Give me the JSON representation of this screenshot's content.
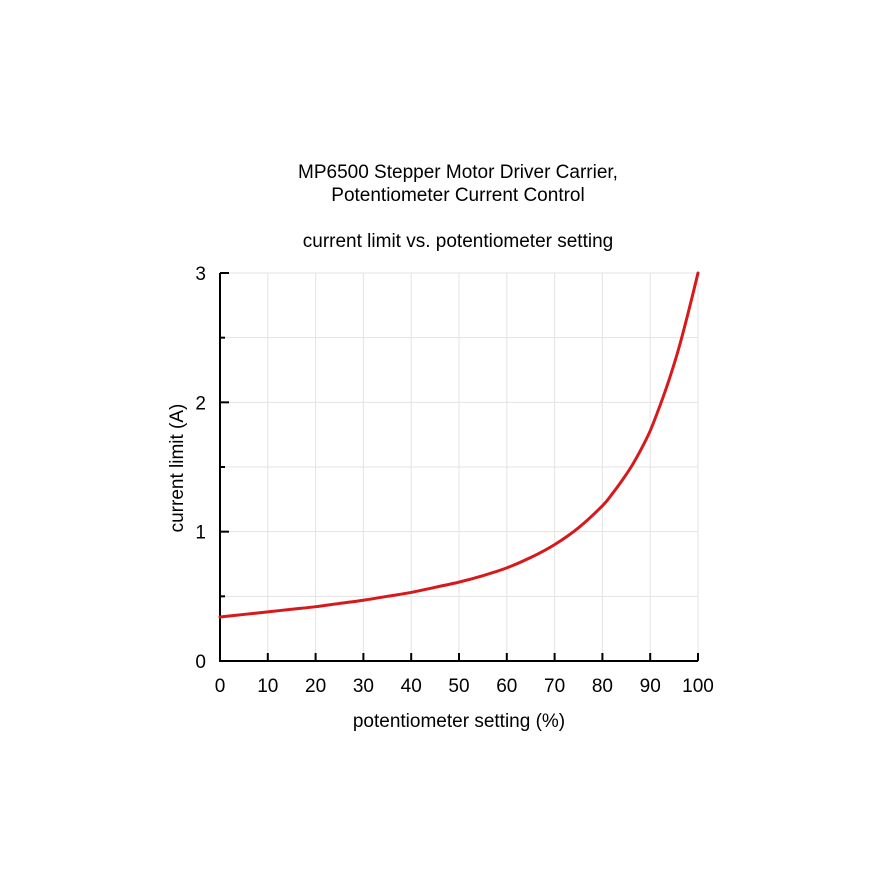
{
  "chart_data": {
    "type": "line",
    "title_lines": [
      "MP6500 Stepper Motor Driver Carrier,",
      "Potentiometer Current Control"
    ],
    "subtitle": "current limit vs. potentiometer setting",
    "xlabel": "potentiometer setting (%)",
    "ylabel": "current limit (A)",
    "xlim": [
      0,
      100
    ],
    "ylim": [
      0,
      3
    ],
    "x_ticks": [
      0,
      10,
      20,
      30,
      40,
      50,
      60,
      70,
      80,
      90,
      100
    ],
    "y_ticks": [
      0,
      1,
      2,
      3
    ],
    "grid": true,
    "line_color": "#d7191c",
    "series": [
      {
        "x": [
          0,
          5,
          10,
          15,
          20,
          25,
          30,
          35,
          40,
          45,
          50,
          55,
          60,
          65,
          70,
          75,
          80,
          82,
          84,
          86,
          88,
          90,
          92,
          94,
          96,
          98,
          100
        ],
        "values": [
          0.34,
          0.36,
          0.38,
          0.4,
          0.42,
          0.445,
          0.47,
          0.5,
          0.53,
          0.57,
          0.61,
          0.66,
          0.72,
          0.8,
          0.9,
          1.03,
          1.2,
          1.29,
          1.39,
          1.5,
          1.63,
          1.78,
          1.97,
          2.18,
          2.42,
          2.7,
          3.0
        ]
      }
    ]
  }
}
